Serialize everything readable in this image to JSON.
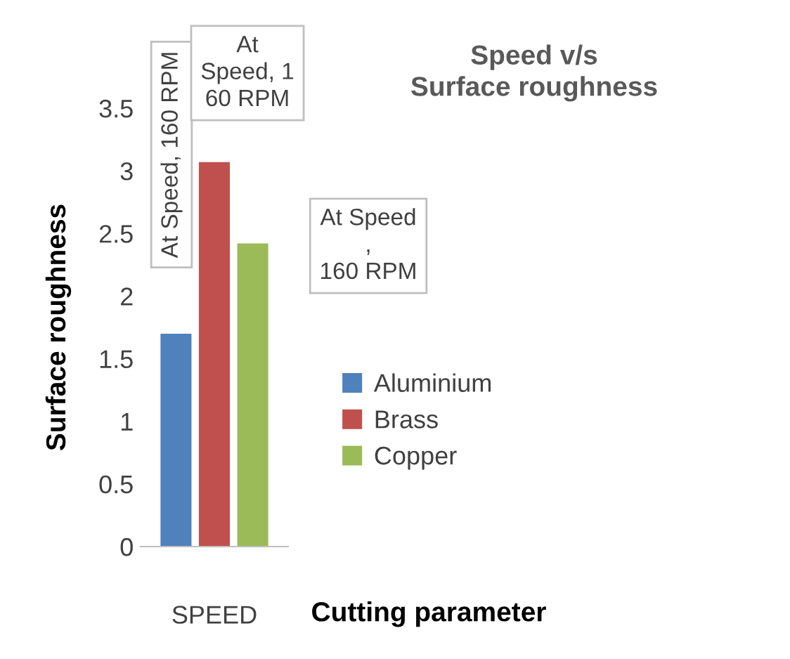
{
  "chart_data": {
    "type": "bar",
    "title": "Speed v/s\nSurface roughness",
    "xlabel": "Cutting parameter",
    "ylabel": "Surface roughness",
    "categories": [
      "SPEED"
    ],
    "series": [
      {
        "name": "Aluminium",
        "color": "#4f81bd",
        "values": [
          1.7
        ]
      },
      {
        "name": "Brass",
        "color": "#c0504d",
        "values": [
          3.07
        ]
      },
      {
        "name": "Copper",
        "color": "#9bbb59",
        "values": [
          2.42
        ]
      }
    ],
    "ylim": [
      0,
      3.5
    ],
    "yticks": [
      0,
      0.5,
      1,
      1.5,
      2,
      2.5,
      3,
      3.5
    ],
    "grid": false,
    "legend": "right",
    "annotations": [
      "At Speed, 160 RPM",
      "At\nSpeed, 1\n60 RPM",
      "At Speed\n,\n160 RPM"
    ]
  }
}
